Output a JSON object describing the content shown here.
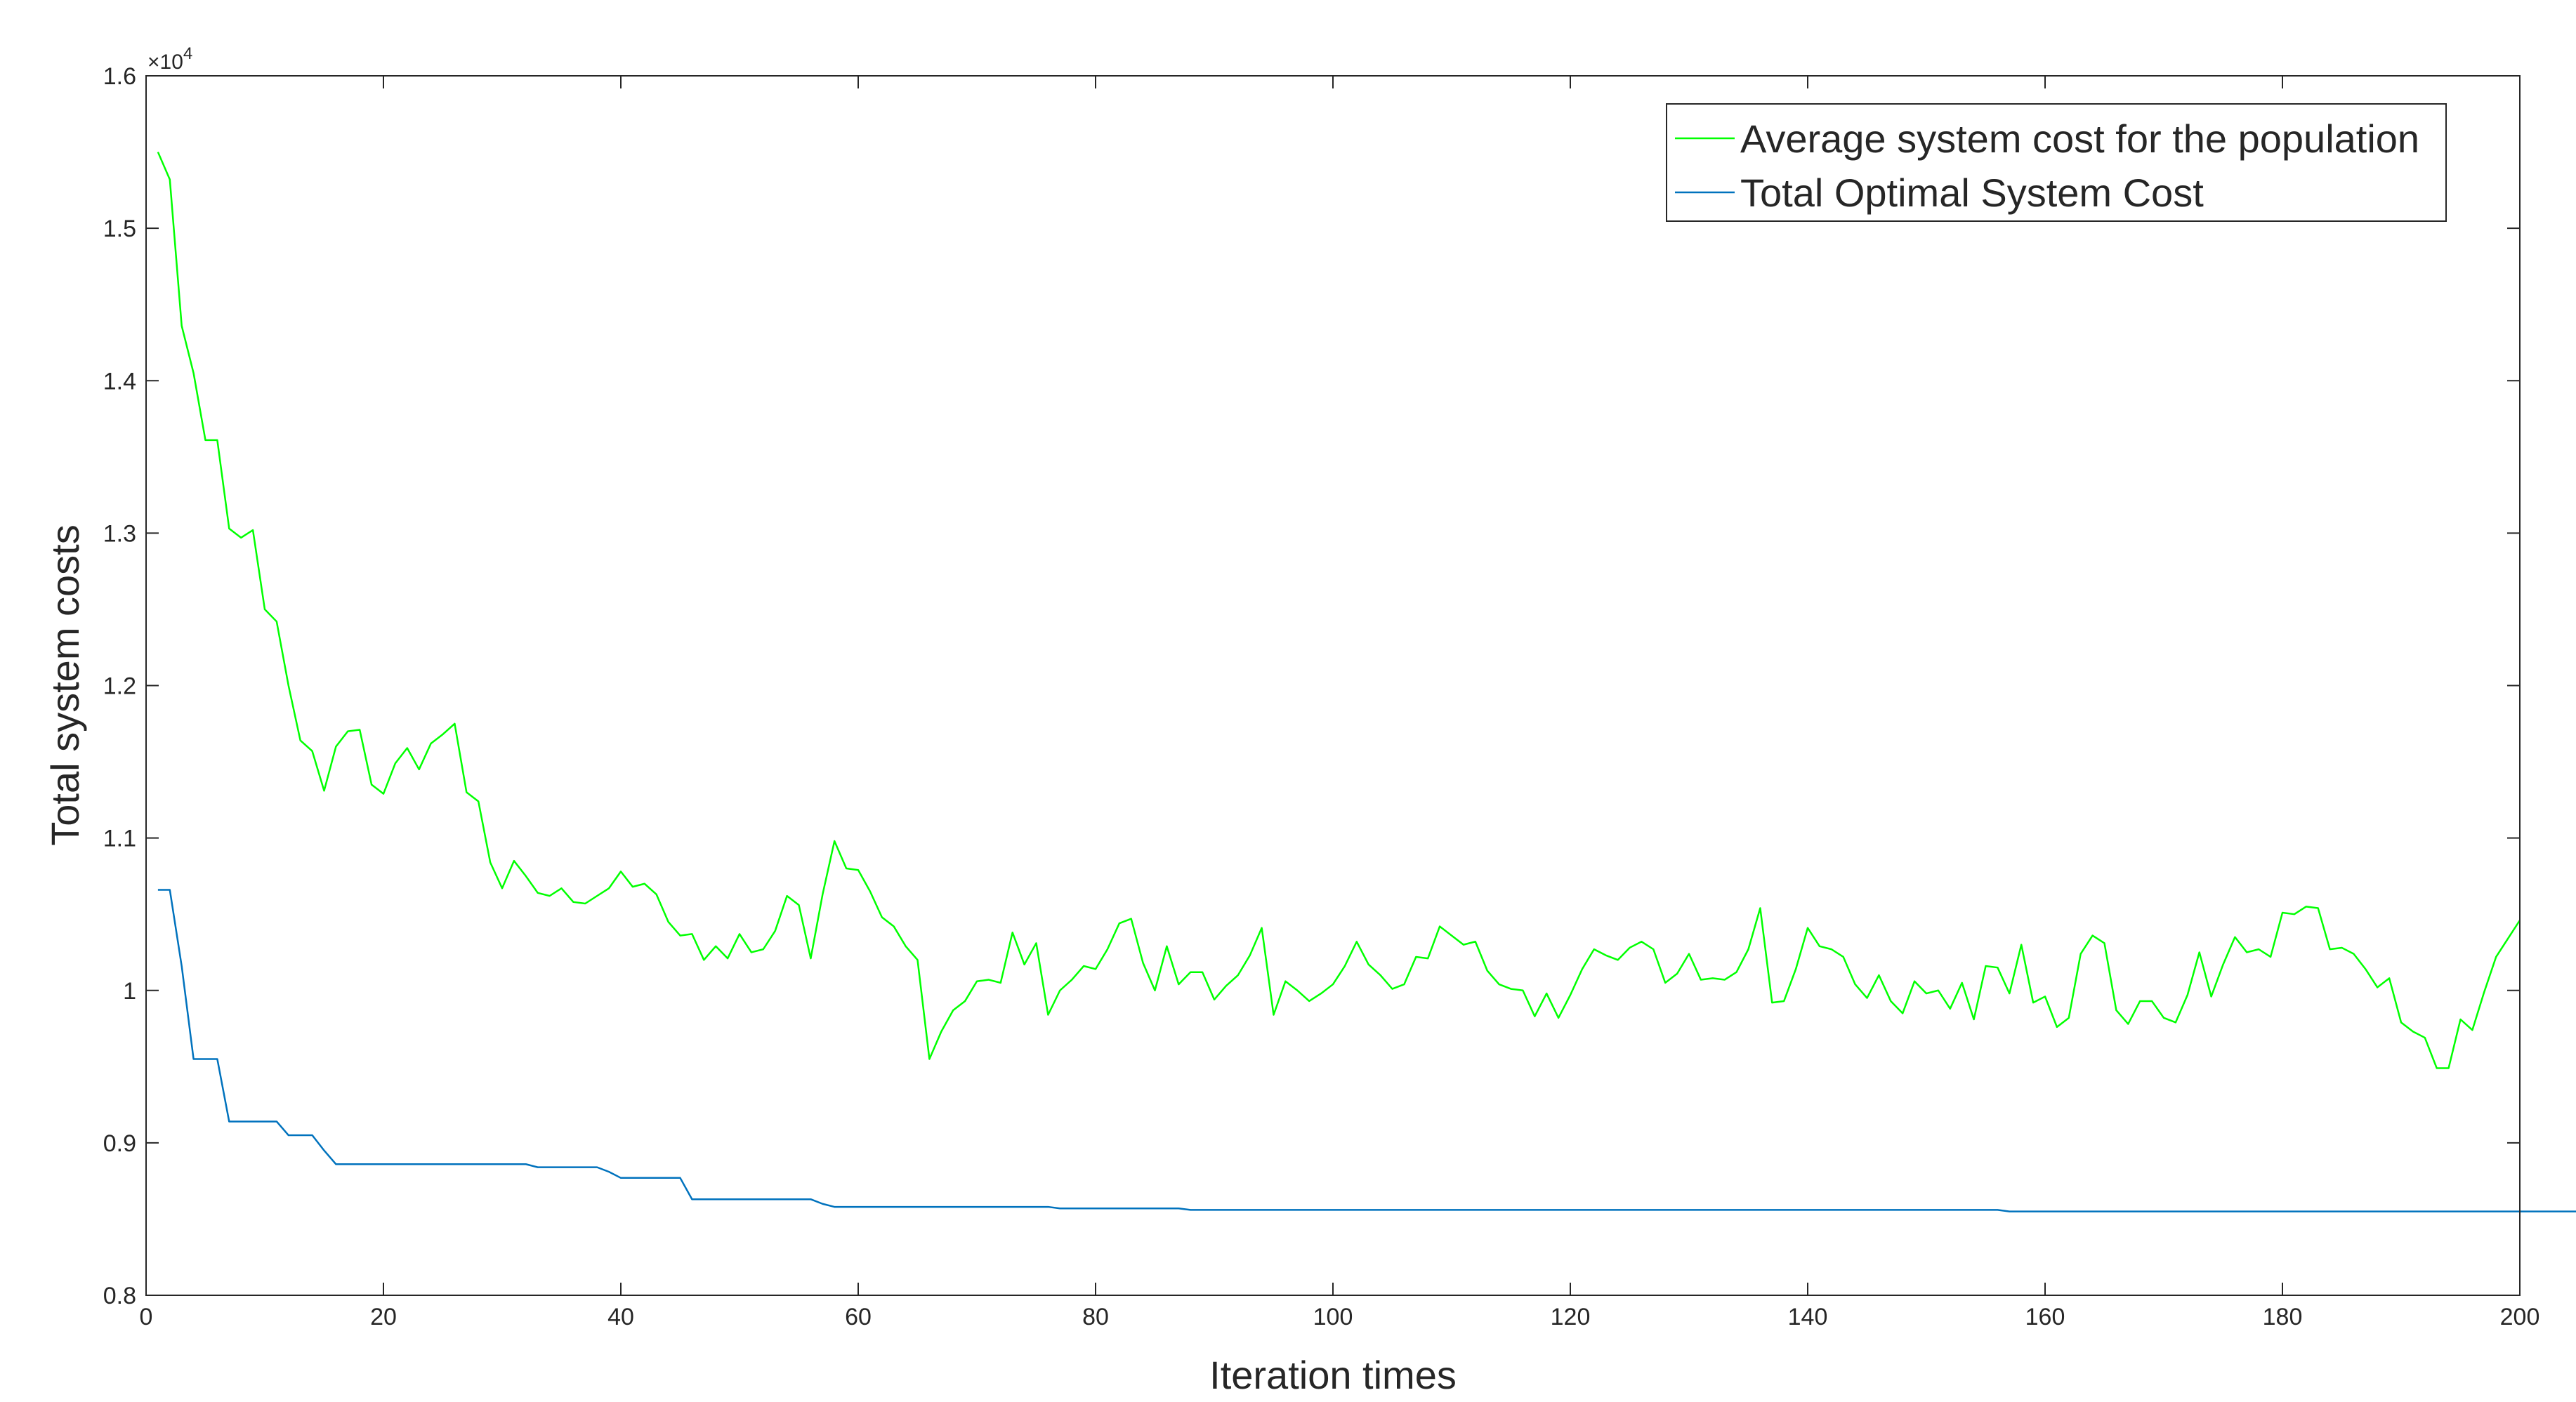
{
  "chart_data": {
    "type": "line",
    "title": "",
    "xlabel": "Iteration times",
    "ylabel": "Total system costs",
    "y_exponent_label": "×10",
    "y_exponent_power": "4",
    "xlim": [
      0,
      200
    ],
    "ylim": [
      0.8,
      1.6
    ],
    "xticks": [
      0,
      20,
      40,
      60,
      80,
      100,
      120,
      140,
      160,
      180,
      200
    ],
    "xtick_labels": [
      "0",
      "20",
      "40",
      "60",
      "80",
      "100",
      "120",
      "140",
      "160",
      "180",
      "200"
    ],
    "yticks": [
      0.8,
      0.9,
      1.0,
      1.1,
      1.2,
      1.3,
      1.4,
      1.5,
      1.6
    ],
    "ytick_labels": [
      "0.8",
      "0.9",
      "1",
      "1.1",
      "1.2",
      "1.3",
      "1.4",
      "1.5",
      "1.6"
    ],
    "grid": false,
    "legend_position": "top-right",
    "series": [
      {
        "name": "Average system cost for the population",
        "color": "#00ff00",
        "x_start": 1,
        "values": [
          1.55,
          1.532,
          1.436,
          1.405,
          1.361,
          1.361,
          1.303,
          1.297,
          1.302,
          1.25,
          1.242,
          1.2,
          1.164,
          1.157,
          1.131,
          1.16,
          1.17,
          1.171,
          1.135,
          1.129,
          1.149,
          1.159,
          1.145,
          1.162,
          1.168,
          1.175,
          1.13,
          1.124,
          1.084,
          1.067,
          1.085,
          1.075,
          1.064,
          1.062,
          1.067,
          1.058,
          1.057,
          1.062,
          1.067,
          1.078,
          1.068,
          1.07,
          1.063,
          1.045,
          1.036,
          1.037,
          1.02,
          1.029,
          1.021,
          1.037,
          1.025,
          1.027,
          1.039,
          1.062,
          1.056,
          1.021,
          1.063,
          1.098,
          1.08,
          1.079,
          1.065,
          1.048,
          1.042,
          1.029,
          1.02,
          0.955,
          0.973,
          0.987,
          0.993,
          1.006,
          1.007,
          1.005,
          1.038,
          1.017,
          1.031,
          0.984,
          1.0,
          1.007,
          1.016,
          1.014,
          1.027,
          1.044,
          1.047,
          1.018,
          1.0,
          1.029,
          1.004,
          1.012,
          1.012,
          0.994,
          1.003,
          1.01,
          1.023,
          1.041,
          0.984,
          1.006,
          1.0,
          0.993,
          0.998,
          1.004,
          1.016,
          1.032,
          1.017,
          1.01,
          1.001,
          1.004,
          1.022,
          1.021,
          1.042,
          1.036,
          1.03,
          1.032,
          1.013,
          1.004,
          1.001,
          1.0,
          0.983,
          0.998,
          0.982,
          0.997,
          1.014,
          1.027,
          1.023,
          1.02,
          1.028,
          1.032,
          1.027,
          1.005,
          1.011,
          1.024,
          1.007,
          1.008,
          1.007,
          1.012,
          1.027,
          1.054,
          0.992,
          0.993,
          1.014,
          1.041,
          1.029,
          1.027,
          1.022,
          1.004,
          0.995,
          1.01,
          0.993,
          0.985,
          1.006,
          0.998,
          1.0,
          0.988,
          1.005,
          0.981,
          1.016,
          1.015,
          0.998,
          1.03,
          0.992,
          0.996,
          0.976,
          0.982,
          1.024,
          1.036,
          1.031,
          0.987,
          0.978,
          0.993,
          0.993,
          0.982,
          0.979,
          0.997,
          1.025,
          0.996,
          1.017,
          1.035,
          1.025,
          1.027,
          1.022,
          1.051,
          1.05,
          1.055,
          1.054,
          1.027,
          1.028,
          1.024,
          1.014,
          1.002,
          1.008,
          0.979,
          0.973,
          0.969,
          0.949,
          0.949,
          0.981,
          0.974,
          0.999,
          1.022,
          1.034,
          1.046
        ]
      },
      {
        "name": "Total Optimal System Cost",
        "color": "#0072bd",
        "x_start": 1,
        "values": [
          1.066,
          1.066,
          1.016,
          0.955,
          0.955,
          0.955,
          0.914,
          0.914,
          0.914,
          0.914,
          0.914,
          0.905,
          0.905,
          0.905,
          0.895,
          0.886,
          0.886,
          0.886,
          0.886,
          0.886,
          0.886,
          0.886,
          0.886,
          0.886,
          0.886,
          0.886,
          0.886,
          0.886,
          0.886,
          0.886,
          0.886,
          0.886,
          0.884,
          0.884,
          0.884,
          0.884,
          0.884,
          0.884,
          0.881,
          0.877,
          0.877,
          0.877,
          0.877,
          0.877,
          0.877,
          0.863,
          0.863,
          0.863,
          0.863,
          0.863,
          0.863,
          0.863,
          0.863,
          0.863,
          0.863,
          0.863,
          0.86,
          0.858,
          0.858,
          0.858,
          0.858,
          0.858,
          0.858,
          0.858,
          0.858,
          0.858,
          0.858,
          0.858,
          0.858,
          0.858,
          0.858,
          0.858,
          0.858,
          0.858,
          0.858,
          0.858,
          0.857,
          0.857,
          0.857,
          0.857,
          0.857,
          0.857,
          0.857,
          0.857,
          0.857,
          0.857,
          0.857,
          0.856,
          0.856,
          0.856,
          0.856,
          0.856,
          0.856,
          0.856,
          0.856,
          0.856,
          0.856,
          0.856,
          0.856,
          0.856,
          0.856,
          0.856,
          0.856,
          0.856,
          0.856,
          0.856,
          0.856,
          0.856,
          0.856,
          0.856,
          0.856,
          0.856,
          0.856,
          0.856,
          0.856,
          0.856,
          0.856,
          0.856,
          0.856,
          0.856,
          0.856,
          0.856,
          0.856,
          0.856,
          0.856,
          0.856,
          0.856,
          0.856,
          0.856,
          0.856,
          0.856,
          0.856,
          0.856,
          0.856,
          0.856,
          0.856,
          0.856,
          0.856,
          0.856,
          0.856,
          0.856,
          0.856,
          0.856,
          0.856,
          0.856,
          0.856,
          0.856,
          0.856,
          0.856,
          0.856,
          0.856,
          0.856,
          0.856,
          0.856,
          0.856,
          0.856,
          0.855,
          0.855,
          0.855,
          0.855,
          0.855,
          0.855,
          0.855,
          0.855,
          0.855,
          0.855,
          0.855,
          0.855,
          0.855,
          0.855,
          0.855,
          0.855,
          0.855,
          0.855,
          0.855,
          0.855,
          0.855,
          0.855,
          0.855,
          0.855,
          0.855,
          0.855,
          0.855,
          0.855,
          0.855,
          0.855,
          0.855,
          0.855,
          0.855,
          0.855,
          0.855,
          0.855,
          0.855,
          0.855,
          0.855,
          0.855,
          0.855,
          0.855,
          0.855,
          0.855,
          0.855,
          0.855,
          0.855,
          0.855,
          0.855,
          0.855,
          0.855,
          0.855,
          0.855,
          0.855,
          0.855,
          0.855
        ]
      }
    ]
  }
}
